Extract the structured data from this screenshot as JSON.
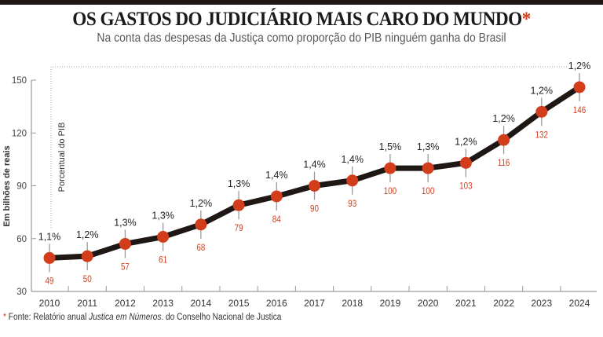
{
  "header": {
    "title": "OS GASTOS DO JUDICIÁRIO MAIS CARO DO MUNDO",
    "title_marker": "*",
    "subtitle": "Na conta das despesas da Justiça como proporção do PIB ninguém ganha do Brasil"
  },
  "footer": {
    "marker": "*",
    "prefix": " Fonte: Relatório anual ",
    "italic": "Justica em Números",
    "suffix": ". do Conselho Nacional de Justica"
  },
  "colors": {
    "accent": "#d23d1c",
    "line": "#1e1714",
    "axis": "#9a9a9a",
    "text": "#333333"
  },
  "chart_data": {
    "type": "line",
    "title": "OS GASTOS DO JUDICIÁRIO MAIS CARO DO MUNDO",
    "subtitle": "Na conta das despesas da Justiça como proporção do PIB ninguém ganha do Brasil",
    "xlabel": "",
    "ylabel": "Em bilhões de reais",
    "annotation_label": "Porcentual do PIB",
    "x": [
      "2010",
      "2011",
      "2012",
      "2013",
      "2014",
      "2015",
      "2016",
      "2017",
      "2018",
      "2019",
      "2020",
      "2021",
      "2022",
      "2023",
      "2024"
    ],
    "series": [
      {
        "name": "Em bilhões de reais",
        "values": [
          49,
          50,
          57,
          61,
          68,
          79,
          84,
          90,
          93,
          100,
          100,
          103,
          116,
          132,
          146
        ],
        "value_labels": [
          "49",
          "50",
          "57",
          "61",
          "68",
          "79",
          "84",
          "90",
          "93",
          "100",
          "100",
          "103",
          "116",
          "132",
          "146"
        ]
      },
      {
        "name": "Porcentual do PIB",
        "labels": [
          "1,1%",
          "1,2%",
          "1,3%",
          "1,3%",
          "1,2%",
          "1,3%",
          "1,4%",
          "1,4%",
          "1,4%",
          "1,5%",
          "1,3%",
          "1,2%",
          "1,2%",
          "1,2%",
          "1,2%"
        ]
      }
    ],
    "ylim": [
      30,
      150
    ],
    "yticks": [
      30,
      60,
      90,
      120,
      150
    ],
    "ytick_labels": [
      "30",
      "60",
      "90",
      "120",
      "150"
    ],
    "grid": false,
    "legend": "none"
  }
}
